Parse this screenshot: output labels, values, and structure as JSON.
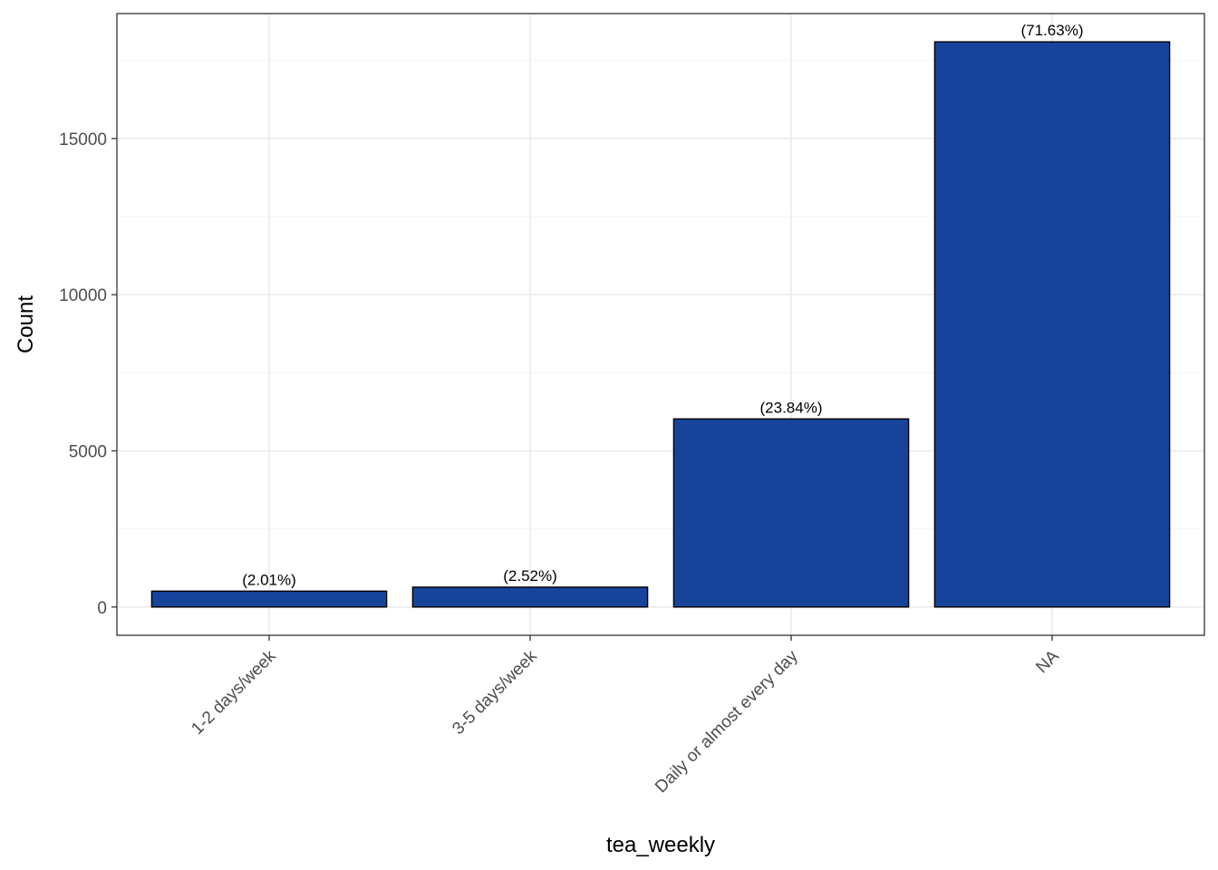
{
  "chart_data": {
    "type": "bar",
    "categories": [
      "1-2 days/week",
      "3-5 days/week",
      "Daily or almost every day",
      "NA"
    ],
    "values": [
      508,
      636,
      6022,
      18095
    ],
    "data_labels": [
      "(2.01%)",
      "(2.52%)",
      "(23.84%)",
      "(71.63%)"
    ],
    "title": "",
    "xlabel": "tea_weekly",
    "ylabel": "Count",
    "ylim": [
      -905,
      19000
    ],
    "y_ticks": [
      0,
      5000,
      10000,
      15000
    ],
    "y_tick_labels": [
      "0",
      "5000",
      "10000",
      "15000"
    ],
    "y_minor_ticks": [
      2500,
      7500,
      12500,
      17500
    ],
    "grid": true,
    "legend": "none",
    "colors": {
      "bar_fill": "#17449A",
      "bar_stroke": "#000000",
      "grid_major": "#EBEBEB",
      "grid_minor": "#F5F5F5",
      "panel_border": "#333333"
    }
  }
}
